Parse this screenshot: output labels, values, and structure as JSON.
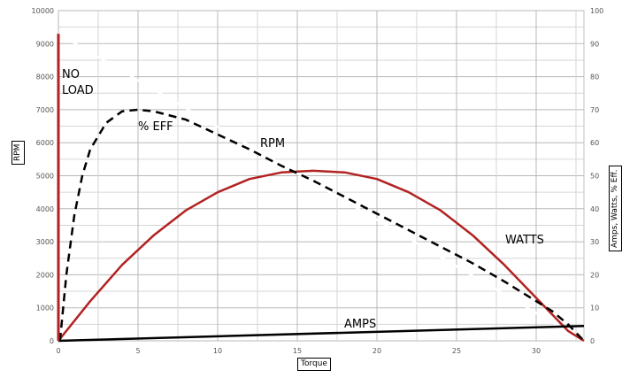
{
  "chart_data": {
    "type": "line",
    "xlabel": "Torque",
    "ylabel_left": "RPM",
    "ylabel_right": "Amps, Watts, % Eff.",
    "x_range": [
      0,
      33
    ],
    "x_ticks": [
      "0",
      "5",
      "10",
      "15",
      "20",
      "25",
      "30"
    ],
    "y_left_range": [
      0,
      10000
    ],
    "y_left_ticks": [
      "0",
      "1000",
      "2000",
      "3000",
      "4000",
      "5000",
      "6000",
      "7000",
      "8000",
      "9000",
      "10000"
    ],
    "y_right_range": [
      0,
      100
    ],
    "y_right_ticks": [
      "0",
      "10",
      "20",
      "30",
      "40",
      "50",
      "60",
      "70",
      "80",
      "90",
      "100"
    ],
    "grid": true,
    "series": [
      {
        "name": "RPM",
        "axis": "left",
        "color": "#ffffff",
        "style": "solid",
        "points": [
          [
            0,
            9300
          ],
          [
            33,
            0
          ]
        ]
      },
      {
        "name": "WATTS",
        "axis": "right",
        "color": "#b22222",
        "style": "solid",
        "points": [
          [
            0,
            0
          ],
          [
            2,
            12
          ],
          [
            4,
            23
          ],
          [
            6,
            32
          ],
          [
            8,
            39.5
          ],
          [
            10,
            45
          ],
          [
            12,
            49
          ],
          [
            14,
            51
          ],
          [
            16,
            51.5
          ],
          [
            18,
            51
          ],
          [
            20,
            49
          ],
          [
            22,
            45
          ],
          [
            24,
            39.5
          ],
          [
            26,
            32
          ],
          [
            28,
            23
          ],
          [
            30,
            13
          ],
          [
            32,
            3
          ],
          [
            33,
            0
          ]
        ]
      },
      {
        "name": "% EFF",
        "axis": "right",
        "color": "#000000",
        "style": "dashed",
        "points": [
          [
            0.1,
            0
          ],
          [
            0.5,
            20
          ],
          [
            1,
            38
          ],
          [
            1.5,
            50
          ],
          [
            2,
            58
          ],
          [
            3,
            66
          ],
          [
            4,
            69.5
          ],
          [
            5,
            70
          ],
          [
            6,
            69.5
          ],
          [
            8,
            67
          ],
          [
            10,
            62.5
          ],
          [
            12,
            58
          ],
          [
            14,
            53
          ],
          [
            16,
            48.5
          ],
          [
            18,
            43.5
          ],
          [
            20,
            38.5
          ],
          [
            22,
            33.5
          ],
          [
            24,
            28.5
          ],
          [
            26,
            23.5
          ],
          [
            28,
            18
          ],
          [
            30,
            12
          ],
          [
            31,
            9
          ],
          [
            32,
            5
          ],
          [
            33,
            0
          ]
        ]
      },
      {
        "name": "AMPS",
        "axis": "right",
        "color": "#000000",
        "style": "solid",
        "points": [
          [
            0,
            0
          ],
          [
            33,
            4.5
          ]
        ]
      },
      {
        "name": "NO LOAD",
        "axis": "left",
        "color": "#b22222",
        "style": "solid",
        "points": [
          [
            0,
            0
          ],
          [
            0,
            9300
          ]
        ]
      }
    ],
    "annotations": {
      "no_load_line1": "NO",
      "no_load_line2": "LOAD",
      "eff": "% EFF",
      "rpm": "RPM",
      "watts": "WATTS",
      "amps": "AMPS"
    }
  }
}
